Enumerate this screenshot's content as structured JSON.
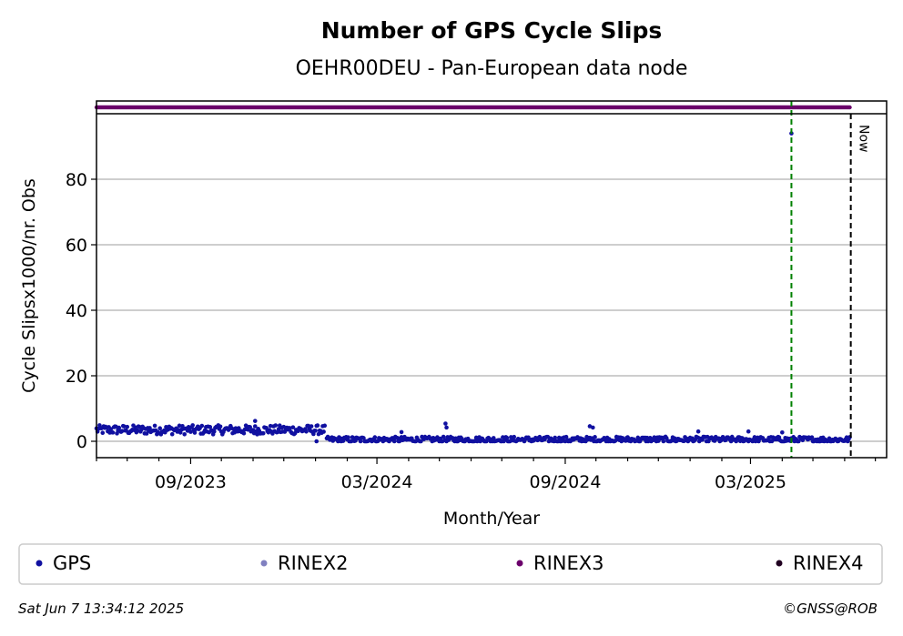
{
  "chart_data": {
    "type": "scatter",
    "title": "Number of GPS Cycle Slips",
    "subtitle": "OEHR00DEU - Pan-European data node",
    "xlabel": "Month/Year",
    "ylabel": "Cycle Slipsx1000/nr. Obs",
    "x_ticks": [
      "09/2023",
      "03/2024",
      "09/2024",
      "03/2025"
    ],
    "y_ticks": [
      0,
      20,
      40,
      60,
      80
    ],
    "xlim": [
      "2023-06-01",
      "2025-07-12"
    ],
    "ylim": [
      -5,
      100
    ],
    "grid": "y",
    "now_label": "Now",
    "now_date": "2025-06-07",
    "event_line_date": "2025-04-10",
    "rinex3_availability": {
      "start": "2023-06-01",
      "end": "2025-06-06",
      "color": "#6b006b"
    },
    "series": [
      {
        "name": "GPS",
        "color": "#1010a0",
        "segments": [
          {
            "start": "2023-06-01",
            "end": "2024-01-10",
            "base": 3.5,
            "jitter": 1.4
          },
          {
            "start": "2024-01-12",
            "end": "2025-06-06",
            "base": 0.5,
            "jitter": 0.9
          }
        ],
        "extra_points": [
          {
            "x": "2023-11-03",
            "y": 6.2
          },
          {
            "x": "2024-01-02",
            "y": 0.0
          },
          {
            "x": "2024-03-25",
            "y": 2.8
          },
          {
            "x": "2024-05-07",
            "y": 5.4
          },
          {
            "x": "2024-05-08",
            "y": 4.2
          },
          {
            "x": "2024-09-25",
            "y": 4.6
          },
          {
            "x": "2024-09-28",
            "y": 4.2
          },
          {
            "x": "2025-01-09",
            "y": 3.0
          },
          {
            "x": "2025-02-27",
            "y": 3.0
          },
          {
            "x": "2025-04-01",
            "y": 2.7
          },
          {
            "x": "2025-04-10",
            "y": 94.0
          }
        ]
      }
    ],
    "legend": [
      {
        "label": "GPS",
        "color": "#1010a0"
      },
      {
        "label": "RINEX2",
        "color": "#8080c0"
      },
      {
        "label": "RINEX3",
        "color": "#6b006b"
      },
      {
        "label": "RINEX4",
        "color": "#200020"
      }
    ]
  },
  "footer": {
    "timestamp": "Sat Jun  7 13:34:12 2025",
    "copyright": "©GNSS@ROB"
  }
}
